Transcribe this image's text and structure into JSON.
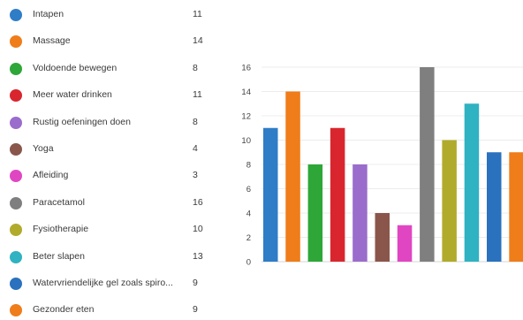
{
  "chart_data": {
    "type": "bar",
    "categories": [
      "Intapen",
      "Massage",
      "Voldoende bewegen",
      "Meer water drinken",
      "Rustig oefeningen doen",
      "Yoga",
      "Afleiding",
      "Paracetamol",
      "Fysiotherapie",
      "Beter slapen",
      "Watervriendelijke gel zoals spiro...",
      "Gezonder eten"
    ],
    "values": [
      11,
      14,
      8,
      11,
      8,
      4,
      3,
      16,
      10,
      13,
      9,
      9
    ],
    "colors": [
      "#2f7dc7",
      "#ef7d1a",
      "#2ea738",
      "#d9262e",
      "#9a6ccb",
      "#8a564b",
      "#e146c2",
      "#7f7f7f",
      "#b1ab2b",
      "#2fb2c2",
      "#2a71be",
      "#ef7d1a"
    ],
    "yticks": [
      "0",
      "2",
      "4",
      "6",
      "8",
      "10",
      "12",
      "14",
      "16"
    ],
    "ylim": [
      0,
      16
    ],
    "grid": true,
    "legend_position": "left"
  }
}
